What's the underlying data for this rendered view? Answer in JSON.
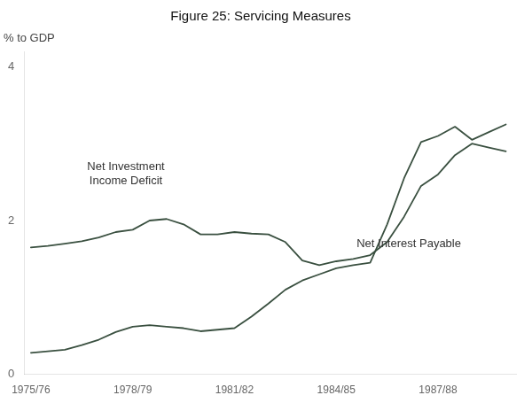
{
  "chart_data": {
    "type": "line",
    "title": "Figure 25: Servicing Measures",
    "ylabel": "% to GDP",
    "x": [
      0,
      0.5,
      1,
      1.5,
      2,
      2.5,
      3,
      3.5,
      4,
      4.5,
      5,
      5.5,
      6,
      6.5,
      7,
      7.5,
      8,
      8.5,
      9,
      9.5,
      10,
      10.5,
      11,
      11.5,
      12,
      12.5,
      13,
      13.5,
      14
    ],
    "xlim": [
      -0.2,
      14.3
    ],
    "xticks": [
      {
        "value": 0,
        "label": "1975/76"
      },
      {
        "value": 3,
        "label": "1978/79"
      },
      {
        "value": 6,
        "label": "1981/82"
      },
      {
        "value": 9,
        "label": "1984/85"
      },
      {
        "value": 12,
        "label": "1987/88"
      }
    ],
    "ylim": [
      0,
      4.2
    ],
    "yticks": [
      0,
      2,
      4
    ],
    "grid": false,
    "series": [
      {
        "color": "#3a5040",
        "values": [
          1.65,
          1.67,
          1.7,
          1.73,
          1.78,
          1.85,
          1.88,
          2.0,
          2.02,
          1.95,
          1.82,
          1.82,
          1.85,
          1.83,
          1.82,
          1.72,
          1.48,
          1.42,
          1.47,
          1.5,
          1.55,
          1.72,
          2.05,
          2.45,
          2.6,
          2.85,
          3.0,
          2.95,
          2.9
        ]
      },
      {
        "color": "#3a5040",
        "values": [
          0.28,
          0.3,
          0.32,
          0.38,
          0.45,
          0.55,
          0.62,
          0.64,
          0.62,
          0.6,
          0.56,
          0.58,
          0.6,
          0.75,
          0.92,
          1.1,
          1.22,
          1.3,
          1.38,
          1.42,
          1.45,
          1.95,
          2.55,
          3.02,
          3.1,
          3.22,
          3.05,
          3.15,
          3.25
        ]
      }
    ],
    "annotations": [
      {
        "text": "Net Investment\nIncome Deficit",
        "x": 2.8,
        "y": 2.6
      },
      {
        "text": "Net Interest Payable",
        "x": 9.6,
        "y": 1.7
      }
    ]
  }
}
